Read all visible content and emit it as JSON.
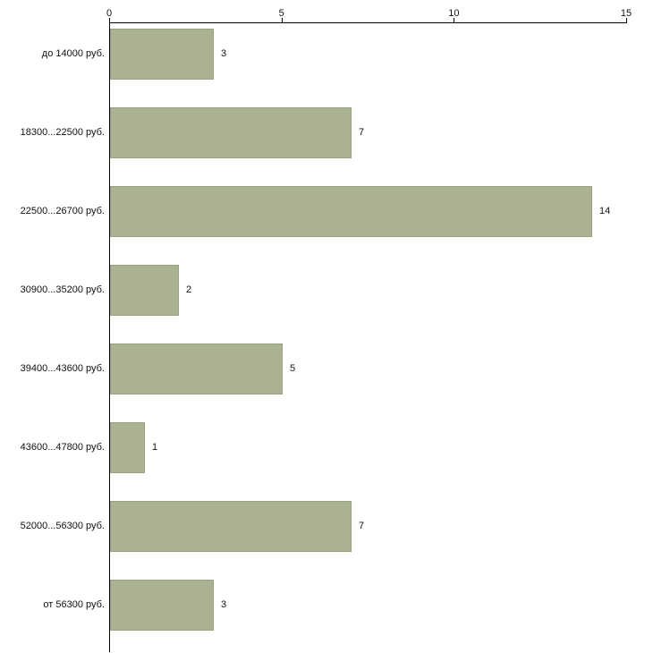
{
  "chart_data": {
    "type": "bar",
    "orientation": "horizontal",
    "title": "",
    "xlabel": "",
    "ylabel": "",
    "categories": [
      "до 14000 руб.",
      "18300...22500 руб.",
      "22500...26700 руб.",
      "30900...35200 руб.",
      "39400...43600 руб.",
      "43600...47800 руб.",
      "52000...56300 руб.",
      "от 56300 руб."
    ],
    "values": [
      3,
      7,
      14,
      2,
      5,
      1,
      7,
      3
    ],
    "xlim": [
      0,
      15
    ],
    "x_ticks": [
      0,
      5,
      10,
      15
    ],
    "x_axis_position": "top",
    "grid": false,
    "legend": false,
    "bar_color": "#abb294",
    "bar_border_color": "#99a183",
    "background_color": "#ffffff",
    "axis_color": "#000000",
    "text_color": "#111111"
  }
}
